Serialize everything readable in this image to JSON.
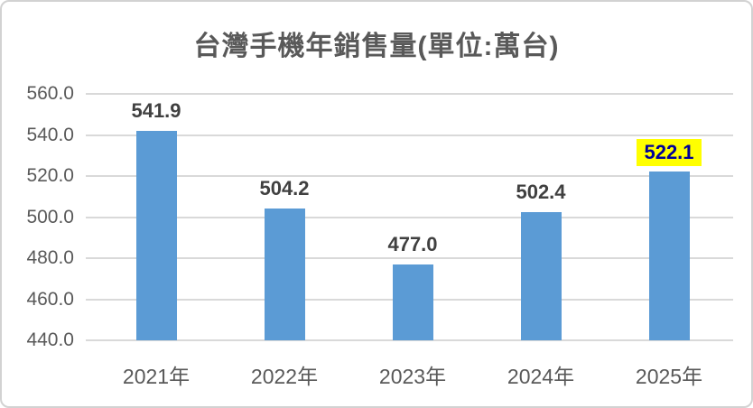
{
  "chart_data": {
    "type": "bar",
    "title": "台灣手機年銷售量(單位:萬台)",
    "categories": [
      "2021年",
      "2022年",
      "2023年",
      "2024年",
      "2025年"
    ],
    "values": [
      541.9,
      504.2,
      477.0,
      502.4,
      522.1
    ],
    "data_labels": [
      "541.9",
      "504.2",
      "477.0",
      "502.4",
      "522.1"
    ],
    "highlighted_index": 4,
    "y_tick_labels": [
      "560.0",
      "540.0",
      "520.0",
      "500.0",
      "480.0",
      "460.0",
      "440.0"
    ],
    "ylim": [
      440,
      560
    ],
    "y_major_step": 20,
    "xlabel": "",
    "ylabel": "",
    "grid": true,
    "legend_position": "none",
    "colors": {
      "bar": "#5B9BD5",
      "gridline": "#D9D9D9",
      "axis_text": "#595959",
      "title_text": "#595959",
      "data_label_text": "#404040",
      "highlight_background": "#FFFF00",
      "highlight_text": "#000099",
      "chart_border": "#D2D2D2",
      "background": "#FFFFFF"
    }
  }
}
